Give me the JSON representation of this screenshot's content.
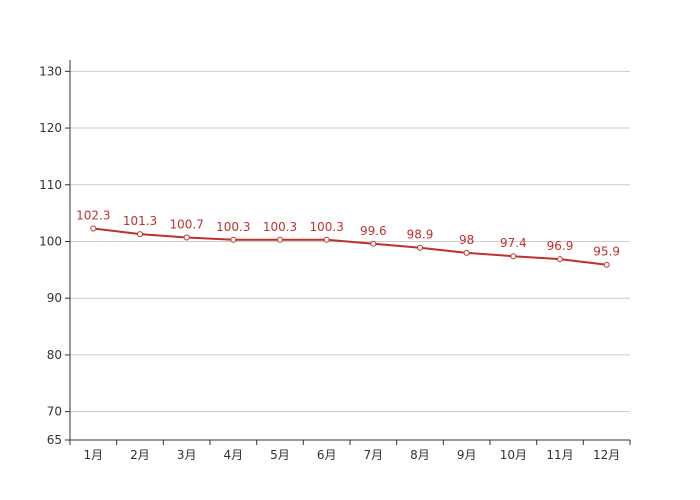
{
  "chart_data": {
    "type": "line",
    "categories": [
      "1月",
      "2月",
      "3月",
      "4月",
      "5月",
      "6月",
      "7月",
      "8月",
      "9月",
      "10月",
      "11月",
      "12月"
    ],
    "series": [
      {
        "values": [
          102.3,
          101.3,
          100.7,
          100.3,
          100.3,
          100.3,
          99.6,
          98.9,
          98,
          97.4,
          96.9,
          95.9
        ],
        "labels": [
          "102.3",
          "101.3",
          "100.7",
          "100.3",
          "100.3",
          "100.3",
          "99.6",
          "98.9",
          "98",
          "97.4",
          "96.9",
          "95.9"
        ],
        "color": "#c0312e"
      }
    ],
    "ylim": [
      65,
      132
    ],
    "yticks": [
      65,
      70,
      80,
      90,
      100,
      110,
      120,
      130
    ],
    "ytick_labels": [
      "65",
      "70",
      "80",
      "90",
      "100",
      "110",
      "120",
      "130"
    ],
    "grid": true,
    "legend": "none"
  }
}
